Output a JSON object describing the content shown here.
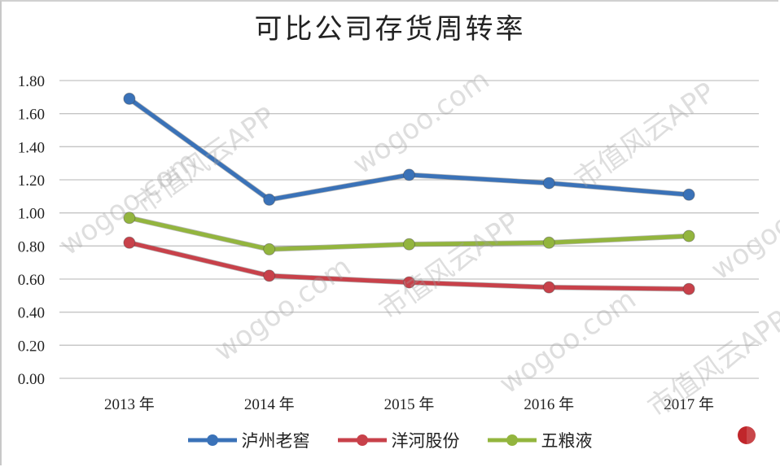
{
  "chart_data": {
    "type": "line",
    "title": "可比公司存货周转率",
    "xlabel": "",
    "ylabel": "",
    "categories": [
      "2013 年",
      "2014 年",
      "2015 年",
      "2016 年",
      "2017 年"
    ],
    "ylim": [
      0,
      1.8
    ],
    "yticks": [
      "0.00",
      "0.20",
      "0.40",
      "0.60",
      "0.80",
      "1.00",
      "1.20",
      "1.40",
      "1.60",
      "1.80"
    ],
    "grid": true,
    "legend_position": "bottom",
    "series": [
      {
        "name": "泸州老窖",
        "color": "#3a72b8",
        "values": [
          1.69,
          1.08,
          1.23,
          1.18,
          1.11
        ]
      },
      {
        "name": "洋河股份",
        "color": "#c8414a",
        "values": [
          0.82,
          0.62,
          0.58,
          0.55,
          0.54
        ]
      },
      {
        "name": "五粮液",
        "color": "#93b53e",
        "values": [
          0.97,
          0.78,
          0.81,
          0.82,
          0.86
        ]
      }
    ]
  },
  "watermarks": [
    "市值风云APP",
    "wogoo.com"
  ]
}
